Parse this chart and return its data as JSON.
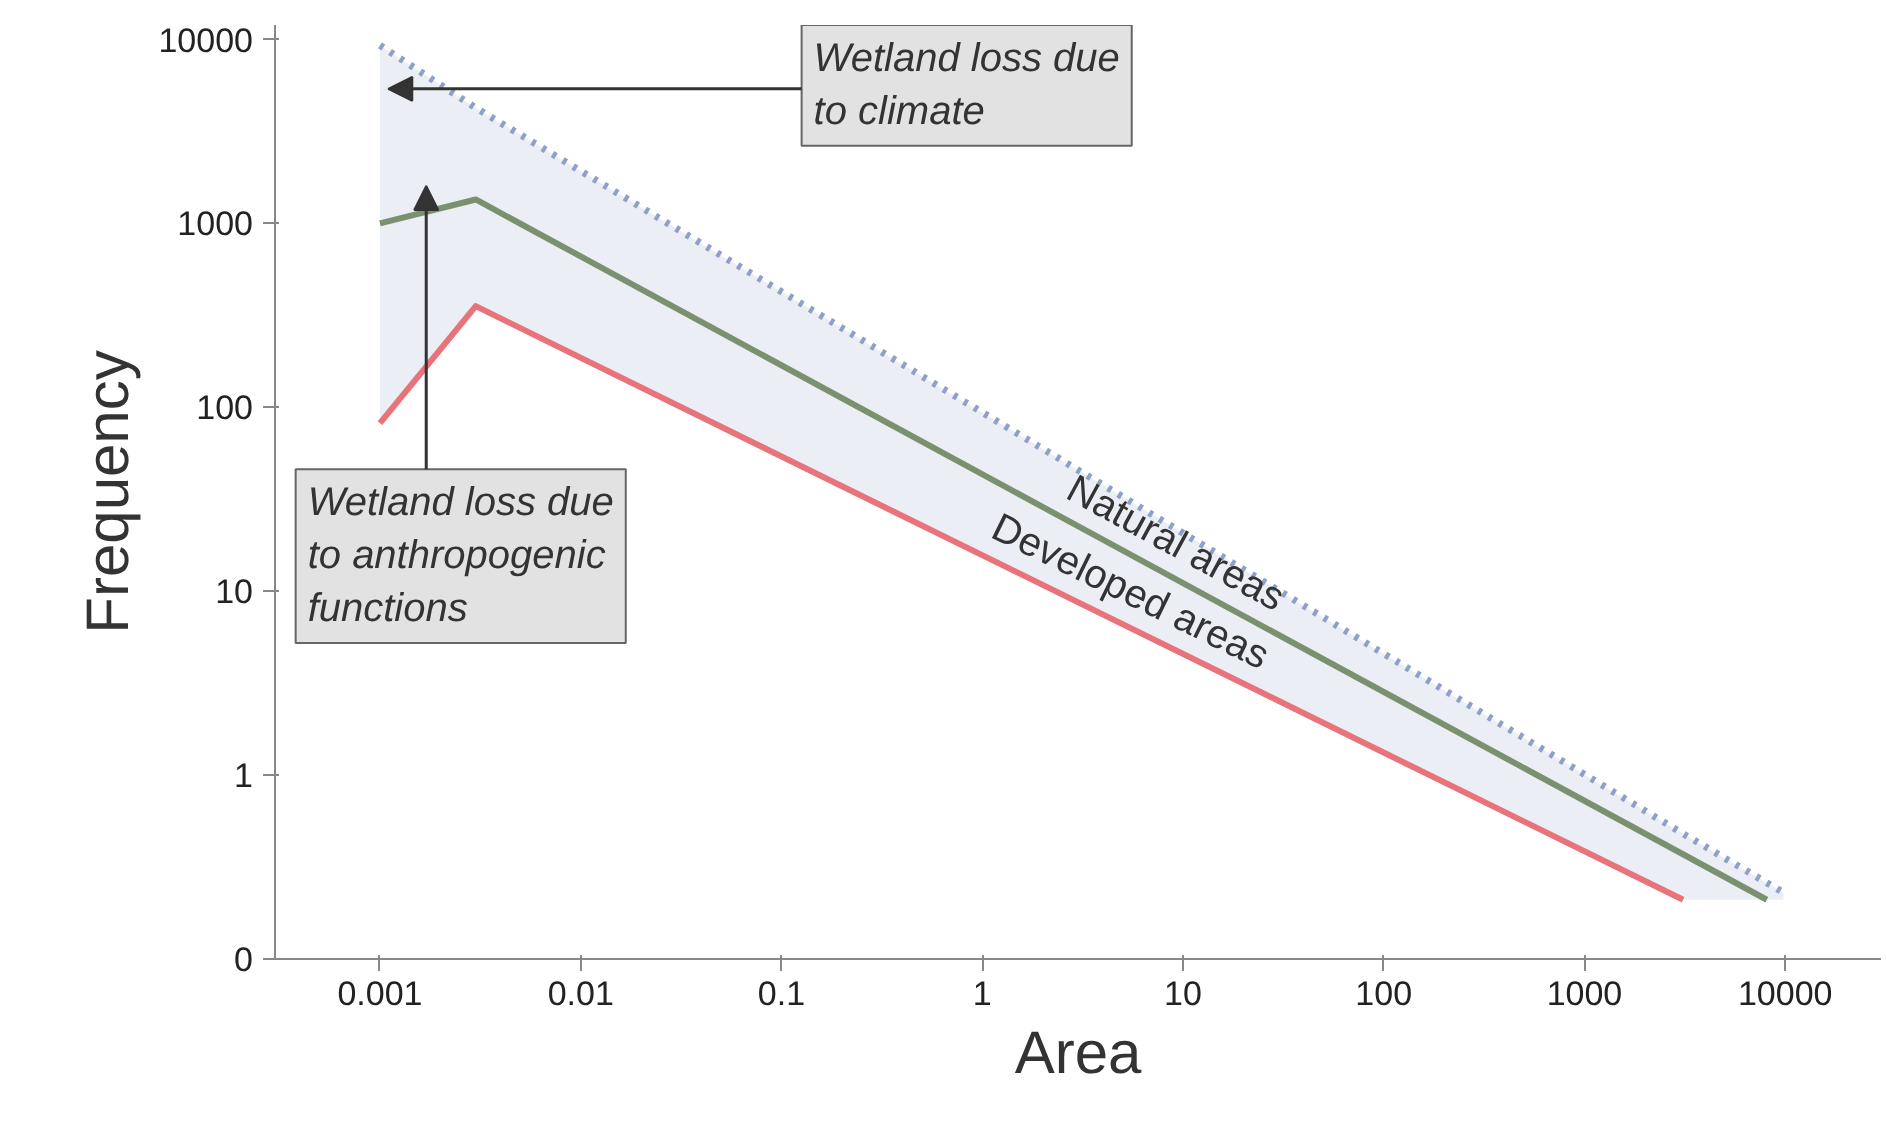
{
  "chart_data": {
    "type": "line",
    "xlabel": "Area",
    "ylabel": "Frequency",
    "log": "xy",
    "xlim": [
      0.0003,
      30000
    ],
    "ylim": [
      0.1,
      12000
    ],
    "xticks": [
      {
        "value": 0.001,
        "label": "0.001"
      },
      {
        "value": 0.01,
        "label": "0.01"
      },
      {
        "value": 0.1,
        "label": "0.1"
      },
      1,
      10,
      100,
      1000,
      10000
    ],
    "yticks": [
      {
        "value": 0.1,
        "label": "0"
      },
      1,
      10,
      100,
      1000,
      10000
    ],
    "grid": false,
    "marker": "none",
    "series": [
      {
        "color": "#8fa0c8",
        "line_style": "dotted",
        "x": [
          0.001,
          0.003,
          3100,
          9800
        ],
        "values": [
          9300,
          4250,
          0.48,
          0.23
        ],
        "lower": [
          82,
          355,
          0.21,
          0.21
        ],
        "upper": [
          9300,
          4250,
          0.48,
          0.23
        ]
      },
      {
        "name": "Natural areas",
        "color": "#7a9170",
        "line_style": "solid",
        "x": [
          0.001,
          0.003,
          8100
        ],
        "values": [
          1000,
          1350,
          0.21
        ]
      },
      {
        "name": "Developed areas",
        "color": "#e8737a",
        "line_style": "solid",
        "x": [
          0.001,
          0.003,
          3100
        ],
        "values": [
          82,
          355,
          0.21
        ]
      }
    ],
    "annotations": [
      "Wetland loss due\nto climate",
      "Wetland loss due\nto anthropogenic\nfunctions"
    ]
  }
}
